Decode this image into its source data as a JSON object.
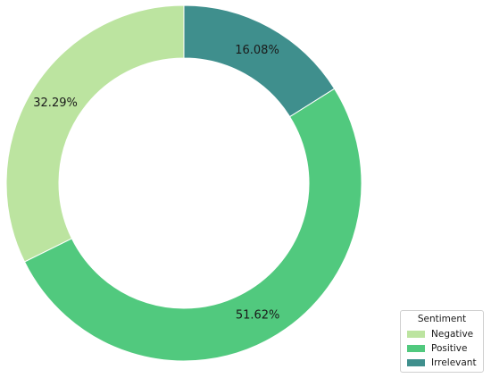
{
  "chart_data": {
    "type": "pie",
    "variant": "donut",
    "categories": [
      "Negative",
      "Positive",
      "Irrelevant"
    ],
    "values": [
      32.29,
      51.62,
      16.08
    ],
    "labels": [
      "32.29%",
      "51.62%",
      "16.08%"
    ],
    "colors": [
      "#bce4a0",
      "#51c97e",
      "#3f8f8d"
    ],
    "start": "top",
    "direction": "counterclockwise",
    "legend": {
      "title": "Sentiment",
      "position": "lower-right",
      "entries": [
        "Negative",
        "Positive",
        "Irrelevant"
      ]
    }
  }
}
